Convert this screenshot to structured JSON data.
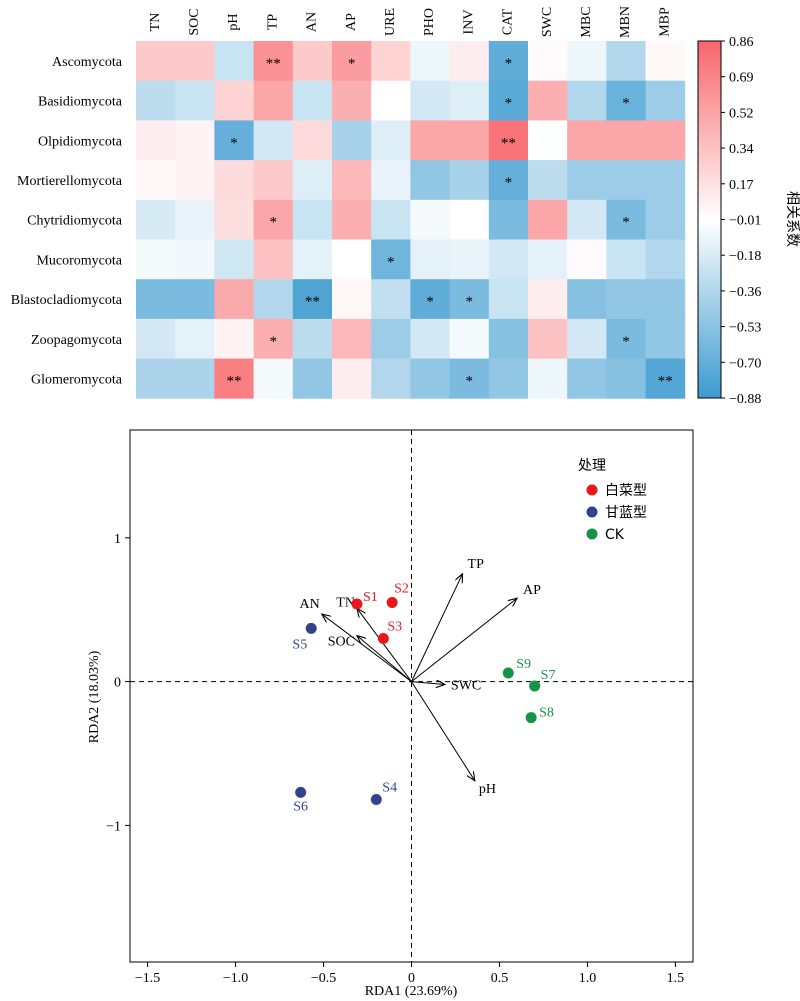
{
  "chart_data": [
    {
      "type": "heatmap",
      "columns": [
        "TN",
        "SOC",
        "pH",
        "TP",
        "AN",
        "AP",
        "URE",
        "PHO",
        "INV",
        "CAT",
        "SWC",
        "MBC",
        "MBN",
        "MBP"
      ],
      "rows": [
        "Ascomycota",
        "Basidiomycota",
        "Olpidiomycota",
        "Mortierellomycota",
        "Chytridiomycota",
        "Mucoromycota",
        "Blastocladiomycota",
        "Zoopagomycota",
        "Glomeromycota"
      ],
      "values": [
        [
          0.3,
          0.3,
          -0.25,
          0.62,
          0.3,
          0.55,
          0.25,
          -0.08,
          0.1,
          -0.72,
          0.02,
          -0.08,
          -0.35,
          0.04
        ],
        [
          -0.3,
          -0.25,
          0.25,
          0.5,
          -0.25,
          0.45,
          0.0,
          -0.2,
          -0.15,
          -0.75,
          0.45,
          -0.35,
          -0.68,
          -0.45
        ],
        [
          0.1,
          0.06,
          -0.7,
          -0.2,
          0.2,
          -0.4,
          -0.15,
          0.5,
          0.5,
          0.78,
          -0.01,
          0.5,
          0.5,
          0.5
        ],
        [
          0.04,
          0.06,
          0.2,
          0.3,
          -0.15,
          0.4,
          -0.1,
          -0.5,
          -0.4,
          -0.7,
          -0.3,
          -0.45,
          -0.45,
          -0.45
        ],
        [
          -0.18,
          -0.1,
          0.18,
          0.5,
          -0.25,
          0.45,
          -0.25,
          -0.05,
          0.0,
          -0.6,
          0.5,
          -0.2,
          -0.6,
          -0.45
        ],
        [
          -0.05,
          -0.06,
          -0.22,
          0.35,
          -0.12,
          0.0,
          -0.65,
          -0.12,
          -0.1,
          -0.2,
          -0.12,
          0.02,
          -0.25,
          -0.35
        ],
        [
          -0.6,
          -0.6,
          0.48,
          -0.35,
          -0.8,
          0.05,
          -0.28,
          -0.72,
          -0.6,
          -0.25,
          0.1,
          -0.55,
          -0.5,
          -0.5
        ],
        [
          -0.2,
          -0.12,
          0.06,
          0.45,
          -0.3,
          0.4,
          -0.45,
          -0.2,
          -0.05,
          -0.55,
          0.35,
          -0.2,
          -0.6,
          -0.5
        ],
        [
          -0.38,
          -0.38,
          0.72,
          -0.05,
          -0.5,
          0.1,
          -0.35,
          -0.5,
          -0.6,
          -0.5,
          -0.08,
          -0.5,
          -0.55,
          -0.78
        ]
      ],
      "significance": [
        [
          "",
          "",
          "",
          "**",
          "",
          "*",
          "",
          "",
          "",
          "*",
          "",
          "",
          "",
          ""
        ],
        [
          "",
          "",
          "",
          "",
          "",
          "",
          "",
          "",
          "",
          "*",
          "",
          "",
          "*",
          ""
        ],
        [
          "",
          "",
          "*",
          "",
          "",
          "",
          "",
          "",
          "",
          "**",
          "",
          "",
          "",
          ""
        ],
        [
          "",
          "",
          "",
          "",
          "",
          "",
          "",
          "",
          "",
          "*",
          "",
          "",
          "",
          ""
        ],
        [
          "",
          "",
          "",
          "*",
          "",
          "",
          "",
          "",
          "",
          "",
          "",
          "",
          "*",
          ""
        ],
        [
          "",
          "",
          "",
          "",
          "",
          "",
          "*",
          "",
          "",
          "",
          "",
          "",
          "",
          ""
        ],
        [
          "",
          "",
          "",
          "",
          "**",
          "",
          "",
          "*",
          "*",
          "",
          "",
          "",
          "",
          ""
        ],
        [
          "",
          "",
          "",
          "*",
          "",
          "",
          "",
          "",
          "",
          "",
          "",
          "",
          "*",
          ""
        ],
        [
          "",
          "",
          "**",
          "",
          "",
          "",
          "",
          "",
          "*",
          "",
          "",
          "",
          "",
          "**"
        ]
      ],
      "colorbar": {
        "label": "相关系数",
        "ticks": [
          "0.86",
          "0.69",
          "0.52",
          "0.34",
          "0.17",
          "−0.01",
          "−0.18",
          "−0.36",
          "−0.53",
          "−0.70",
          "−0.88"
        ],
        "min": -0.88,
        "max": 0.86,
        "colors": {
          "negative": "#3d9bd0",
          "neutral": "#ffffff",
          "positive": "#f8666a"
        }
      }
    },
    {
      "type": "scatter",
      "subtype": "rda_biplot",
      "xlabel": "RDA1 (23.69%)",
      "ylabel": "RDA2 (18.03%)",
      "xlim": [
        -1.6,
        1.6
      ],
      "ylim": [
        -1.95,
        1.75
      ],
      "xticks": [
        -1.5,
        -1.0,
        -0.5,
        0,
        0.5,
        1.0,
        1.5
      ],
      "xtick_labels": [
        "−1.5",
        "−1.0",
        "−0.5",
        "0",
        "0.5",
        "1.0",
        "1.5"
      ],
      "yticks": [
        1,
        0,
        -1
      ],
      "ytick_labels": [
        "1",
        "0",
        "−1"
      ],
      "legend": {
        "title": "处理",
        "position": "top-right",
        "groups": [
          {
            "name": "白菜型",
            "color": "#e8171c"
          },
          {
            "name": "甘蓝型",
            "color": "#34418f"
          },
          {
            "name": "CK",
            "color": "#159347"
          }
        ]
      },
      "samples": [
        {
          "label": "S1",
          "group": "白菜型",
          "x": -0.31,
          "y": 0.54
        },
        {
          "label": "S2",
          "group": "白菜型",
          "x": -0.11,
          "y": 0.55
        },
        {
          "label": "S3",
          "group": "白菜型",
          "x": -0.16,
          "y": 0.3
        },
        {
          "label": "S5",
          "group": "甘蓝型",
          "x": -0.57,
          "y": 0.37
        },
        {
          "label": "S6",
          "group": "甘蓝型",
          "x": -0.63,
          "y": -0.77
        },
        {
          "label": "S4",
          "group": "甘蓝型",
          "x": -0.2,
          "y": -0.82
        },
        {
          "label": "S9",
          "group": "CK",
          "x": 0.55,
          "y": 0.06
        },
        {
          "label": "S7",
          "group": "CK",
          "x": 0.7,
          "y": -0.03
        },
        {
          "label": "S8",
          "group": "CK",
          "x": 0.68,
          "y": -0.25
        }
      ],
      "vectors": [
        {
          "name": "TP",
          "x": 0.29,
          "y": 0.75
        },
        {
          "name": "AP",
          "x": 0.6,
          "y": 0.58
        },
        {
          "name": "AN",
          "x": -0.51,
          "y": 0.47
        },
        {
          "name": "TN",
          "x": -0.31,
          "y": 0.51
        },
        {
          "name": "SOC",
          "x": -0.31,
          "y": 0.32
        },
        {
          "name": "SWC",
          "x": 0.19,
          "y": -0.02
        },
        {
          "name": "pH",
          "x": 0.36,
          "y": -0.69
        }
      ]
    }
  ]
}
